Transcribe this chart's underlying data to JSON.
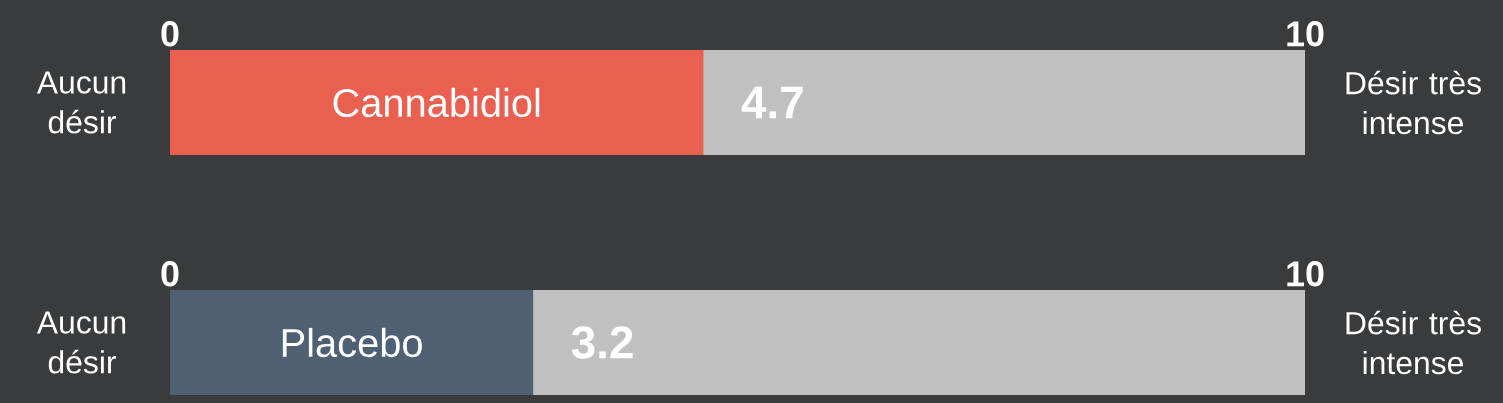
{
  "chart_data": [
    {
      "type": "bar",
      "orientation": "horizontal",
      "categories": [
        "Cannabidiol"
      ],
      "values": [
        4.7
      ],
      "color": "#e95f50",
      "xlim": [
        0,
        10
      ],
      "xticks": [
        0,
        10
      ],
      "data_labels": true,
      "bands": [
        {
          "axis": "x",
          "from": 0,
          "to": 10,
          "color": "#c0c0c0"
        }
      ],
      "annotations": [
        "Aucun désir",
        "Désir très intense"
      ]
    },
    {
      "type": "bar",
      "orientation": "horizontal",
      "categories": [
        "Placebo"
      ],
      "values": [
        3.2
      ],
      "color": "#4f6075",
      "xlim": [
        0,
        10
      ],
      "xticks": [
        0,
        10
      ],
      "data_labels": true,
      "bands": [
        {
          "axis": "x",
          "from": 0,
          "to": 10,
          "color": "#c0c0c0"
        }
      ],
      "annotations": [
        "Aucun désir",
        "Désir très intense"
      ]
    }
  ]
}
